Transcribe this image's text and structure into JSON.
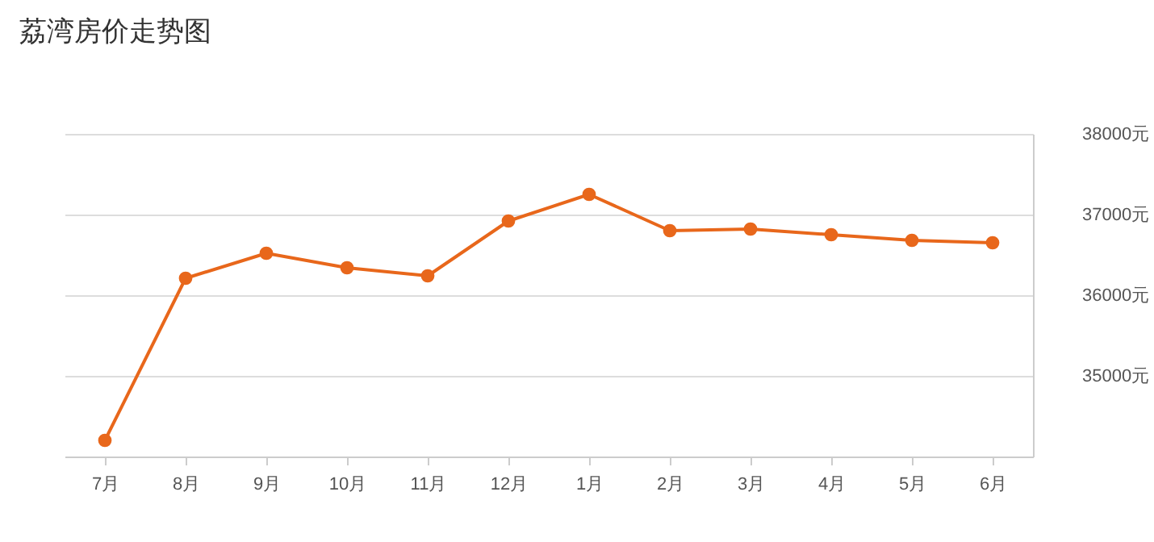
{
  "chart_data": {
    "type": "line",
    "title": "荔湾房价走势图",
    "categories": [
      "7月",
      "8月",
      "9月",
      "10月",
      "11月",
      "12月",
      "1月",
      "2月",
      "3月",
      "4月",
      "5月",
      "6月"
    ],
    "series": [
      {
        "color": "#e8671b",
        "values": [
          34200,
          36210,
          36520,
          36340,
          36240,
          36920,
          37250,
          36800,
          36820,
          36750,
          36680,
          36650
        ]
      }
    ],
    "ylim": [
      34000,
      38000
    ],
    "yticks": [
      {
        "value": 35000,
        "label": "35000元"
      },
      {
        "value": 36000,
        "label": "36000元"
      },
      {
        "value": 37000,
        "label": "37000元"
      },
      {
        "value": 38000,
        "label": "38000元"
      }
    ],
    "grid": "y",
    "marker": "circle",
    "line_style": "solid",
    "legend": false
  }
}
